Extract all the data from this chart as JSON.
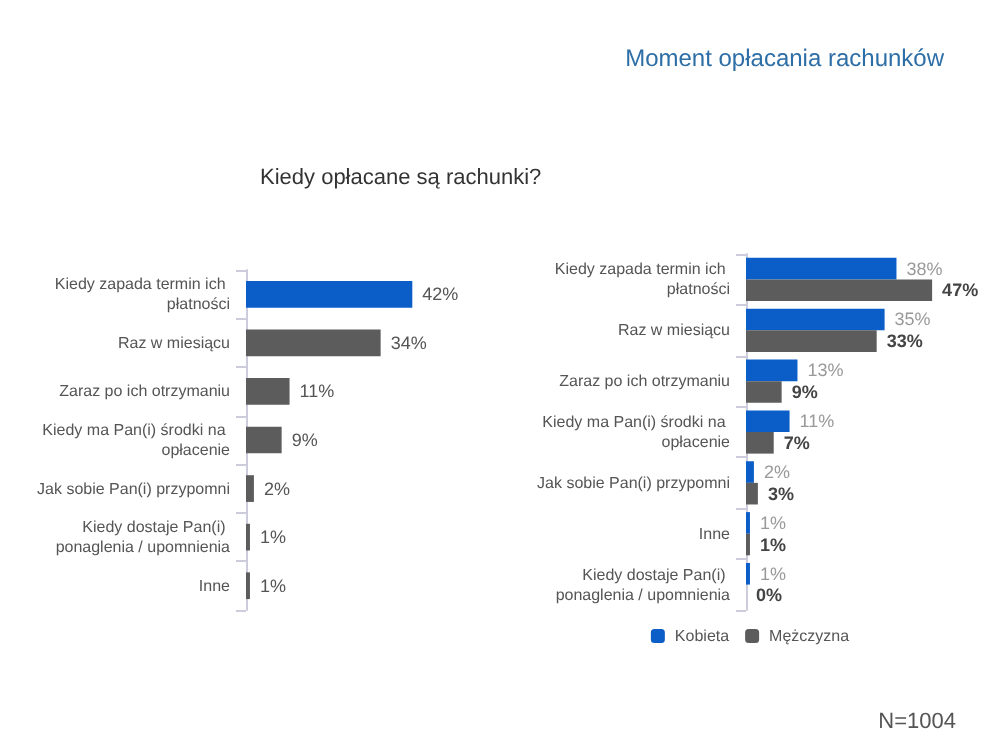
{
  "chart_data": [
    {
      "type": "bar",
      "subtitle": "Kiedy opłacane są rachunki?",
      "orientation": "horizontal",
      "categories": [
        "Kiedy zapada termin ich płatności",
        "Raz w miesiącu",
        "Zaraz po ich otrzymaniu",
        "Kiedy ma Pan(i) środki na opłacenie",
        "Jak sobie Pan(i) przypomni",
        "Kiedy dostaje Pan(i) ponaglenia / upomnienia",
        "Inne"
      ],
      "values": [
        42,
        34,
        11,
        9,
        2,
        1,
        1
      ],
      "value_labels": [
        "42%",
        "34%",
        "11%",
        "9%",
        "2%",
        "1%",
        "1%"
      ],
      "colors": [
        "#0b5ec8",
        "#5c5c5c",
        "#5c5c5c",
        "#5c5c5c",
        "#5c5c5c",
        "#5c5c5c",
        "#5c5c5c"
      ],
      "legend": false
    },
    {
      "type": "bar",
      "title": "Moment opłacania rachunków",
      "orientation": "horizontal",
      "categories": [
        "Kiedy zapada termin ich płatności",
        "Raz w miesiącu",
        "Zaraz po ich otrzymaniu",
        "Kiedy ma Pan(i) środki na opłacenie",
        "Jak sobie Pan(i) przypomni",
        "Inne",
        "Kiedy dostaje Pan(i) ponaglenia / upomnienia"
      ],
      "series": [
        {
          "name": "Kobieta",
          "color": "#0b5ec8",
          "values": [
            38,
            35,
            13,
            11,
            2,
            1,
            1
          ],
          "value_labels": [
            "38%",
            "35%",
            "13%",
            "11%",
            "2%",
            "1%",
            "1%"
          ]
        },
        {
          "name": "Mężczyzna",
          "color": "#5c5c5c",
          "values": [
            47,
            33,
            9,
            7,
            3,
            1,
            0
          ],
          "value_labels": [
            "47%",
            "33%",
            "9%",
            "7%",
            "3%",
            "1%",
            "0%"
          ]
        }
      ],
      "legend": "bottom",
      "annotations": [
        "N=1004"
      ]
    }
  ]
}
